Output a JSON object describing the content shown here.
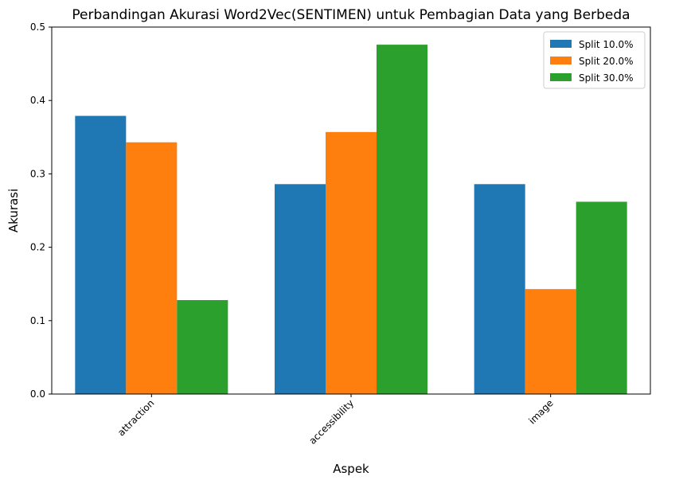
{
  "chart_data": {
    "type": "bar",
    "title": "Perbandingan Akurasi Word2Vec(SENTIMEN) untuk Pembagian Data yang Berbeda",
    "xlabel": "Aspek",
    "ylabel": "Akurasi",
    "categories": [
      "attraction",
      "accessibility",
      "image"
    ],
    "series": [
      {
        "name": "Split 10.0%",
        "color": "#1f77b4",
        "values": [
          0.379,
          0.286,
          0.286
        ]
      },
      {
        "name": "Split 20.0%",
        "color": "#ff7f0e",
        "values": [
          0.343,
          0.357,
          0.143
        ]
      },
      {
        "name": "Split 30.0%",
        "color": "#2ca02c",
        "values": [
          0.128,
          0.476,
          0.262
        ]
      }
    ],
    "ylim": [
      0,
      0.5
    ],
    "yticks": [
      "0.0",
      "0.1",
      "0.2",
      "0.3",
      "0.4",
      "0.5"
    ],
    "grid": false,
    "legend_position": "top-right",
    "xtick_rotation": 45
  }
}
